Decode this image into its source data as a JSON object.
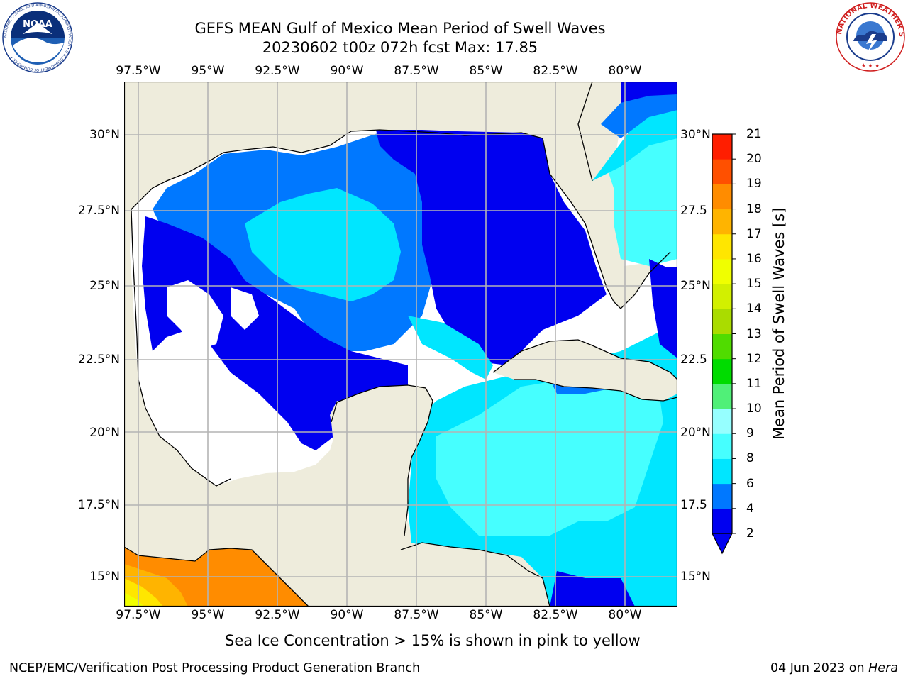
{
  "header": {
    "title_line1": "GEFS MEAN Gulf of Mexico Mean Period of Swell Waves",
    "title_line2": "20230602 t00z 072h fcst   Max: 17.85"
  },
  "logos": {
    "left": {
      "name": "NOAA",
      "ring_text": "NATIONAL OCEANIC AND ATMOSPHERIC ADMINISTRATION • U.S. DEPARTMENT OF COMMERCE •"
    },
    "right": {
      "ring_text": "NATIONAL WEATHER SERVICE"
    }
  },
  "map": {
    "lon_ticks": [
      "97.5°W",
      "95°W",
      "92.5°W",
      "90°W",
      "87.5°W",
      "85°W",
      "82.5°W",
      "80°W"
    ],
    "lat_ticks_left": [
      "30°N",
      "27.5°N",
      "25°N",
      "22.5°N",
      "20°N",
      "17.5°N",
      "15°N"
    ],
    "lat_ticks_right": [
      "30°N",
      "27.5",
      "25°N",
      "22.5",
      "20°N",
      "17.5",
      "15°N"
    ],
    "colors": {
      "land": "#eeecdc",
      "grid": "#b4b4b4",
      "coast": "#000000",
      "no_data": "#ffffff"
    }
  },
  "colorbar": {
    "label": "Mean Period of Swell Waves [s]",
    "ticks": [
      "2",
      "4",
      "6",
      "8",
      "9",
      "10",
      "11",
      "12",
      "13",
      "14",
      "15",
      "16",
      "17",
      "18",
      "19",
      "20",
      "21"
    ],
    "colors": [
      "#0000f0",
      "#0078ff",
      "#00e6ff",
      "#46ffff",
      "#96ffff",
      "#50f078",
      "#00dc00",
      "#50dc00",
      "#aadc00",
      "#d2f000",
      "#f0ff00",
      "#ffe600",
      "#ffb400",
      "#ff8c00",
      "#ff5000",
      "#ff1e00",
      "#ff0000"
    ]
  },
  "note": "Sea Ice Concentration > 15% is shown in pink to yellow",
  "footer": {
    "left": "NCEP/EMC/Verification Post Processing Product Generation Branch",
    "right_prefix": "04 Jun 2023 on ",
    "right_host": "Hera"
  }
}
